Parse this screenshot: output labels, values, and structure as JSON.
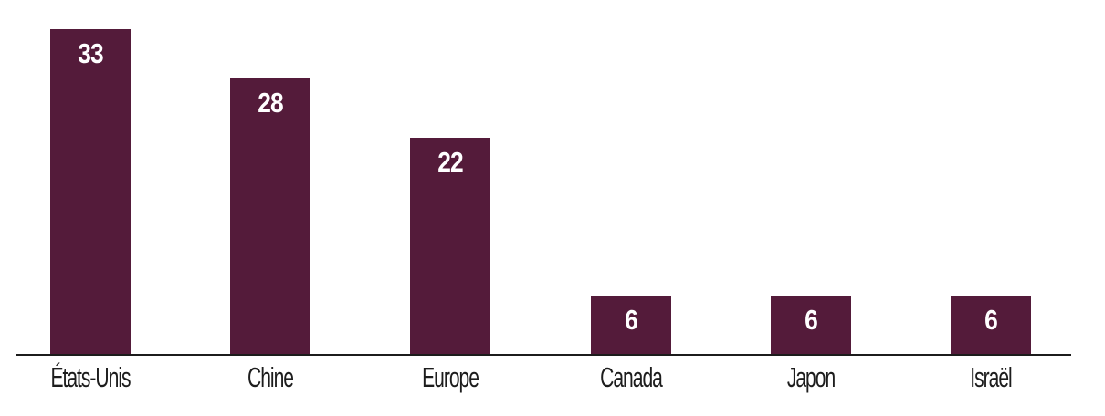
{
  "chart_data": {
    "type": "bar",
    "categories": [
      "États-Unis",
      "Chine",
      "Europe",
      "Canada",
      "Japon",
      "Israël"
    ],
    "values": [
      33,
      28,
      22,
      6,
      6,
      6
    ],
    "title": "",
    "xlabel": "",
    "ylabel": "",
    "ylim": [
      0,
      33
    ],
    "grid": false,
    "legend_position": "none",
    "bar_color": "#541B3A",
    "value_label_color": "#FFFFFF",
    "category_label_color": "#1D1D1D",
    "axis_line_color": "#1C1C1C",
    "background_color": "#FFFFFF"
  }
}
